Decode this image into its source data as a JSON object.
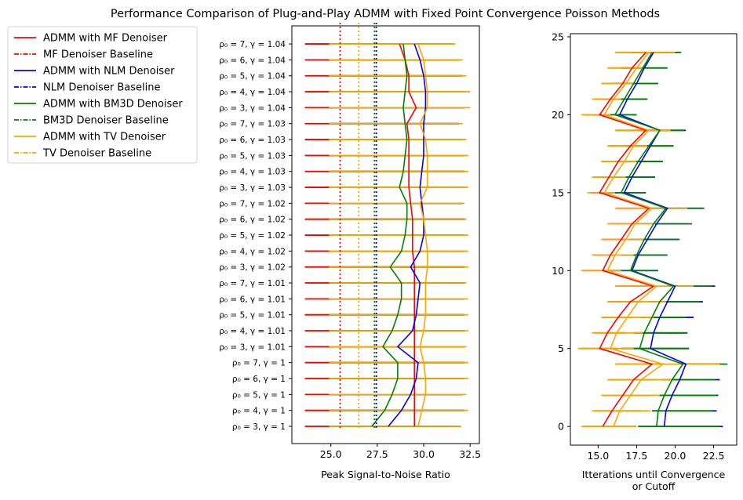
{
  "figure": {
    "title": "Performance Comparison of Plug-and-Play ADMM with Fixed Point Convergence Poisson Methods"
  },
  "legend": {
    "placement": "upper-left, outside",
    "entries": [
      {
        "label": "ADMM with MF Denoiser",
        "color": "#ff0000",
        "style": "solid"
      },
      {
        "label": "MF Denoiser Baseline",
        "color": "#ff0000",
        "style": "dashdot"
      },
      {
        "label": "ADMM with NLM Denoiser",
        "color": "#0000ff",
        "style": "solid"
      },
      {
        "label": "NLM Denoiser Baseline",
        "color": "#0000ff",
        "style": "dashdot"
      },
      {
        "label": "ADMM with BM3D Denoiser",
        "color": "#008000",
        "style": "solid"
      },
      {
        "label": "BM3D Denoiser Baseline",
        "color": "#008000",
        "style": "dashdot"
      },
      {
        "label": "ADMM with TV Denoiser",
        "color": "#ffa500",
        "style": "solid"
      },
      {
        "label": "TV Denoiser Baseline",
        "color": "#ffa500",
        "style": "dashdot"
      }
    ]
  },
  "chart_data": [
    {
      "type": "line",
      "orientation": "horizontal",
      "xlabel": "Peak Signal-to-Noise Ratio",
      "ylabel": "",
      "xlim": [
        22.9,
        33.0
      ],
      "xticks": [
        "25.0",
        "27.5",
        "30.0",
        "32.5"
      ],
      "xtick_values": [
        25.0,
        27.5,
        30.0,
        32.5
      ],
      "grid": false,
      "categories": [
        "ρ₀ = 3, γ = 1",
        "ρ₀ = 4, γ = 1",
        "ρ₀ = 5, γ = 1",
        "ρ₀ = 6, γ = 1",
        "ρ₀ = 7, γ = 1",
        "ρ₀ = 3, γ = 1.01",
        "ρ₀ = 4, γ = 1.01",
        "ρ₀ = 5, γ = 1.01",
        "ρ₀ = 6, γ = 1.01",
        "ρ₀ = 7, γ = 1.01",
        "ρ₀ = 3, γ = 1.02",
        "ρ₀ = 4, γ = 1.02",
        "ρ₀ = 5, γ = 1.02",
        "ρ₀ = 6, γ = 1.02",
        "ρ₀ = 7, γ = 1.02",
        "ρ₀ = 3, γ = 1.03",
        "ρ₀ = 4, γ = 1.03",
        "ρ₀ = 5, γ = 1.03",
        "ρ₀ = 6, γ = 1.03",
        "ρ₀ = 7, γ = 1.03",
        "ρ₀ = 3, γ = 1.04",
        "ρ₀ = 4, γ = 1.04",
        "ρ₀ = 5, γ = 1.04",
        "ρ₀ = 6, γ = 1.04",
        "ρ₀ = 7, γ = 1.04"
      ],
      "series": [
        {
          "name": "ADMM with MF Denoiser",
          "color": "#ff0000",
          "values": [
            29.5,
            29.5,
            29.5,
            29.5,
            29.5,
            29.5,
            29.5,
            29.5,
            29.5,
            29.5,
            29.5,
            29.4,
            29.4,
            29.4,
            29.3,
            29.2,
            29.2,
            29.2,
            29.2,
            29.1,
            29.6,
            29.2,
            29.2,
            29.0,
            28.7
          ]
        },
        {
          "name": "ADMM with NLM Denoiser",
          "color": "#0000ff",
          "values": [
            28.1,
            28.8,
            29.3,
            29.6,
            29.7,
            28.6,
            29.4,
            29.6,
            29.7,
            29.8,
            29.3,
            29.8,
            30.0,
            30.0,
            29.9,
            29.8,
            29.9,
            30.0,
            30.0,
            30.0,
            30.1,
            30.1,
            30.0,
            29.8,
            29.5
          ]
        },
        {
          "name": "ADMM with BM3D Denoiser",
          "color": "#008000",
          "values": [
            27.2,
            27.9,
            28.3,
            28.6,
            28.6,
            27.8,
            28.3,
            28.6,
            28.8,
            28.8,
            28.2,
            28.8,
            29.0,
            29.1,
            29.1,
            28.7,
            28.9,
            29.0,
            29.1,
            29.0,
            28.9,
            29.0,
            29.1,
            29.0,
            28.9
          ]
        },
        {
          "name": "ADMM with TV Denoiser",
          "color": "#ffa500",
          "values": [
            29.7,
            29.9,
            30.1,
            30.1,
            30.0,
            29.8,
            30.0,
            30.1,
            30.1,
            30.1,
            30.2,
            30.2,
            30.1,
            30.0,
            29.8,
            30.2,
            30.2,
            30.2,
            30.1,
            29.8,
            30.2,
            30.2,
            30.1,
            30.0,
            29.7
          ]
        }
      ],
      "error_ranges": {
        "MF": {
          "color": "#ff0000",
          "low": 24.9,
          "high": [
            32.0,
            32.2,
            32.1,
            32.2,
            32.2,
            32.2,
            32.2,
            32.2,
            32.2,
            32.2,
            32.2,
            32.2,
            32.2,
            32.2,
            32.1,
            32.2,
            32.2,
            32.2,
            32.1,
            31.9,
            32.2,
            32.2,
            32.1,
            31.9,
            31.5
          ]
        },
        "NLM": {
          "color": "#0000ff",
          "low": 24.9,
          "high": [
            32.0,
            32.2,
            32.1,
            32.2,
            32.2,
            32.2,
            32.2,
            32.2,
            32.2,
            32.2,
            32.2,
            32.2,
            32.2,
            32.2,
            32.1,
            32.2,
            32.2,
            32.2,
            32.1,
            31.9,
            32.2,
            32.2,
            32.1,
            31.9,
            31.6
          ]
        },
        "BM3D": {
          "color": "#008000",
          "low": 24.9,
          "high": [
            32.0,
            32.2,
            32.1,
            32.2,
            32.2,
            32.2,
            32.2,
            32.2,
            32.2,
            32.2,
            32.2,
            32.2,
            32.2,
            32.2,
            32.1,
            32.2,
            32.2,
            32.2,
            32.1,
            31.9,
            32.2,
            32.2,
            32.1,
            31.9,
            31.5
          ]
        },
        "TV": {
          "color": "#ffa500",
          "low": 23.6,
          "high": [
            32.0,
            32.4,
            32.3,
            32.4,
            32.4,
            32.3,
            32.4,
            32.4,
            32.4,
            32.3,
            32.4,
            32.4,
            32.4,
            32.3,
            32.2,
            32.4,
            32.4,
            32.4,
            32.3,
            32.1,
            32.5,
            32.5,
            32.3,
            32.1,
            31.7
          ]
        }
      },
      "baselines": [
        {
          "name": "MF Denoiser Baseline",
          "color": "#ff0000",
          "x": 25.5
        },
        {
          "name": "TV Denoiser Baseline",
          "color": "#ffa500",
          "x": 26.5
        },
        {
          "name": "BM3D Denoiser Baseline",
          "color": "#008000",
          "x": 27.35
        },
        {
          "name": "NLM Denoiser Baseline",
          "color": "#0000ff",
          "x": 27.45
        }
      ]
    },
    {
      "type": "line",
      "orientation": "horizontal",
      "xlabel": "Itterations until Convergence or Cutoff",
      "ylabel": "",
      "xlim": [
        13.2,
        24.0
      ],
      "ylim": [
        -1.2,
        25.2
      ],
      "xticks": [
        "15.0",
        "17.5",
        "20.0",
        "22.5"
      ],
      "xtick_values": [
        15.0,
        17.5,
        20.0,
        22.5
      ],
      "yticks": [
        "0",
        "5",
        "10",
        "15",
        "20",
        "25"
      ],
      "ytick_values": [
        0,
        5,
        10,
        15,
        20,
        25
      ],
      "grid": false,
      "y": [
        0,
        1,
        2,
        3,
        4,
        5,
        6,
        7,
        8,
        9,
        10,
        11,
        12,
        13,
        14,
        15,
        16,
        17,
        18,
        19,
        20,
        21,
        22,
        23,
        24
      ],
      "series": [
        {
          "name": "ADMM with MF Denoiser",
          "color": "#ff0000",
          "values": [
            15.3,
            15.9,
            16.6,
            17.3,
            18.5,
            15.1,
            15.6,
            16.3,
            17.1,
            18.6,
            15.3,
            15.8,
            16.5,
            17.2,
            18.3,
            15.1,
            15.7,
            16.3,
            17.1,
            18.1,
            15.1,
            15.8,
            16.6,
            17.2,
            18.1
          ]
        },
        {
          "name": "ADMM with NLM Denoiser",
          "color": "#0000ff",
          "values": [
            19.3,
            19.4,
            19.8,
            20.3,
            20.7,
            18.4,
            18.6,
            19.0,
            19.5,
            20.0,
            17.2,
            17.6,
            18.2,
            18.8,
            19.5,
            16.7,
            17.2,
            17.8,
            18.4,
            19.0,
            16.4,
            16.9,
            17.5,
            18.0,
            18.6
          ]
        },
        {
          "name": "ADMM with BM3D Denoiser",
          "color": "#008000",
          "values": [
            18.8,
            18.9,
            19.3,
            19.8,
            20.5,
            17.7,
            18.0,
            18.5,
            19.0,
            19.9,
            17.1,
            17.5,
            18.0,
            18.6,
            19.4,
            16.5,
            17.0,
            17.6,
            18.3,
            19.0,
            16.1,
            16.7,
            17.3,
            17.9,
            18.5
          ]
        },
        {
          "name": "ADMM with TV Denoiser",
          "color": "#ffa500",
          "values": [
            16.0,
            16.4,
            17.1,
            17.8,
            19.2,
            15.8,
            16.2,
            16.9,
            17.6,
            18.8,
            15.6,
            16.1,
            16.8,
            17.4,
            18.5,
            15.4,
            16.0,
            16.7,
            17.3,
            18.3,
            15.4,
            16.0,
            16.8,
            17.5,
            18.3
          ]
        }
      ],
      "error_ranges": {
        "MF": {
          "color": "#ff0000",
          "low": [
            14.1,
            14.8,
            15.3,
            15.7,
            16.2,
            13.9,
            14.8,
            15.3,
            15.7,
            16.2,
            14.0,
            14.8,
            15.3,
            15.7,
            16.2,
            14.5,
            14.8,
            15.3,
            15.7,
            16.2,
            14.1,
            14.8,
            15.3,
            15.7,
            16.2
          ],
          "high": [
            17.5,
            17.8,
            18.3,
            18.8,
            19.3,
            16.2,
            16.8,
            17.3,
            17.8,
            18.5,
            15.5,
            16.2,
            16.8,
            17.3,
            18.0,
            15.3,
            15.8,
            16.5,
            17.0,
            17.8,
            15.0,
            15.8,
            16.5,
            17.0,
            17.8
          ]
        },
        "NLM": {
          "color": "#0000ff",
          "low": [
            17.6,
            18.5,
            18.9,
            19.1,
            20.5,
            16.5,
            17.3,
            17.8,
            18.3,
            19.5,
            15.6,
            16.5,
            17.0,
            17.5,
            18.3,
            15.0,
            15.8,
            16.3,
            16.8,
            17.5,
            14.6,
            15.5,
            16.0,
            16.5,
            17.2
          ],
          "high": [
            23.1,
            22.7,
            22.8,
            22.9,
            23.0,
            20.9,
            20.8,
            21.2,
            21.8,
            22.6,
            18.9,
            19.5,
            20.2,
            20.9,
            21.8,
            18.1,
            18.7,
            19.2,
            19.9,
            20.7,
            17.5,
            18.2,
            18.9,
            19.5,
            20.2
          ]
        },
        "BM3D": {
          "color": "#008000",
          "low": [
            17.6,
            18.5,
            18.9,
            19.1,
            20.5,
            16.5,
            17.3,
            17.8,
            18.3,
            19.5,
            15.6,
            16.5,
            17.0,
            17.5,
            18.3,
            15.0,
            15.8,
            16.3,
            16.8,
            17.5,
            14.6,
            15.5,
            16.0,
            16.5,
            17.2
          ],
          "high": [
            22.9,
            22.4,
            22.7,
            22.6,
            23.4,
            20.9,
            20.8,
            20.7,
            21.6,
            22.4,
            18.9,
            19.5,
            20.3,
            21.1,
            21.9,
            18.1,
            18.7,
            19.2,
            19.9,
            20.6,
            17.5,
            18.2,
            18.9,
            19.5,
            20.4
          ]
        },
        "TV": {
          "color": "#ffa500",
          "low": [
            13.9,
            14.6,
            15.2,
            15.6,
            16.1,
            13.7,
            14.6,
            15.2,
            15.6,
            16.1,
            13.9,
            14.6,
            15.2,
            15.6,
            16.1,
            14.3,
            14.6,
            15.2,
            15.6,
            16.1,
            13.9,
            14.6,
            15.2,
            15.6,
            16.1
          ],
          "high": [
            17.5,
            18.4,
            19.0,
            19.8,
            22.9,
            17.3,
            17.9,
            18.6,
            19.4,
            21.2,
            16.5,
            17.3,
            18.0,
            18.7,
            20.8,
            16.1,
            16.8,
            17.5,
            18.2,
            19.7,
            15.8,
            16.5,
            17.3,
            17.9,
            20.0
          ]
        }
      }
    }
  ]
}
